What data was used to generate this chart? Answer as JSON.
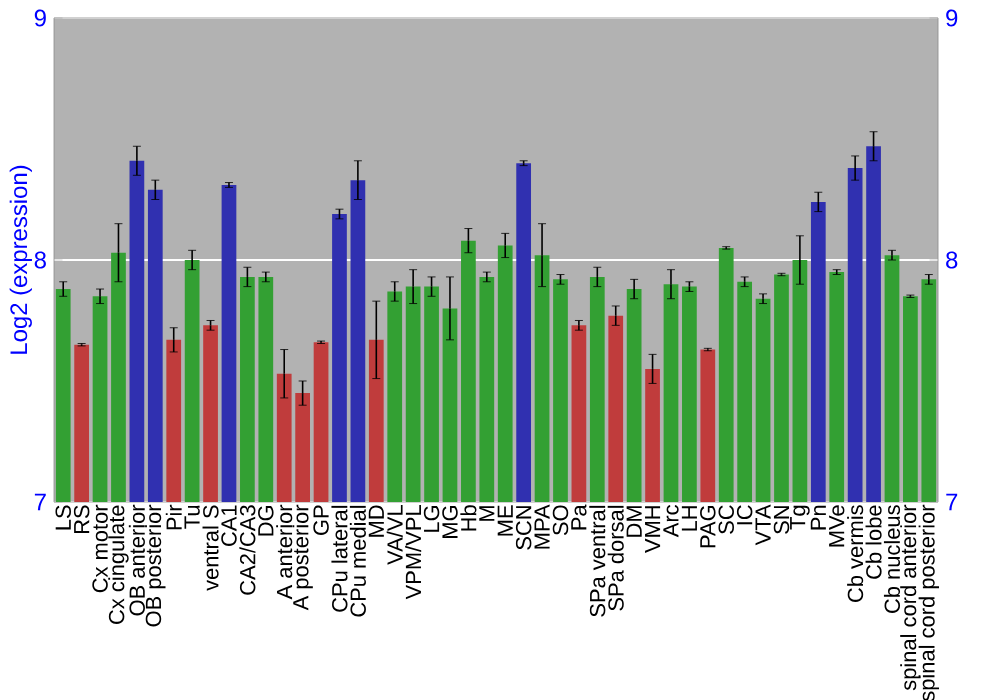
{
  "chart_data": {
    "type": "bar",
    "ylabel": "Log2 (expression)",
    "categories": [
      "LS",
      "RS",
      "Cx motor",
      "Cx cingulate",
      "OB anterior",
      "OB posterior",
      "Pir",
      "Tu",
      "ventral S",
      "CA1",
      "CA2/CA3",
      "DG",
      "A anterior",
      "A posterior",
      "GP",
      "CPu lateral",
      "CPu medial",
      "MD",
      "VA/VL",
      "VPM/VPL",
      "LG",
      "MG",
      "Hb",
      "M",
      "ME",
      "SCN",
      "MPA",
      "SO",
      "Pa",
      "SPa ventral",
      "SPa dorsal",
      "DM",
      "VMH",
      "Arc",
      "LH",
      "PAG",
      "SC",
      "IC",
      "VTA",
      "SN",
      "Tg",
      "Pn",
      "MVe",
      "Cb vermis",
      "Cb lobe",
      "Cb nucleus",
      "spinal cord anterior",
      "spinal cord posterior"
    ],
    "values": [
      7.88,
      7.65,
      7.85,
      8.03,
      8.41,
      8.29,
      7.67,
      8.0,
      7.73,
      8.31,
      7.93,
      7.93,
      7.53,
      7.45,
      7.66,
      8.19,
      8.33,
      7.67,
      7.87,
      7.89,
      7.89,
      7.8,
      8.08,
      7.93,
      8.06,
      8.4,
      8.02,
      7.92,
      7.73,
      7.93,
      7.77,
      7.88,
      7.55,
      7.9,
      7.89,
      7.63,
      8.05,
      7.91,
      7.84,
      7.94,
      8.0,
      8.24,
      7.95,
      8.38,
      8.47,
      8.02,
      7.85,
      7.92
    ],
    "errors": [
      0.03,
      0.005,
      0.03,
      0.12,
      0.06,
      0.04,
      0.05,
      0.04,
      0.02,
      0.01,
      0.04,
      0.02,
      0.1,
      0.05,
      0.005,
      0.02,
      0.08,
      0.16,
      0.04,
      0.07,
      0.04,
      0.13,
      0.05,
      0.02,
      0.05,
      0.01,
      0.13,
      0.02,
      0.02,
      0.04,
      0.04,
      0.04,
      0.06,
      0.06,
      0.02,
      0.005,
      0.005,
      0.02,
      0.02,
      0.005,
      0.1,
      0.04,
      0.01,
      0.05,
      0.06,
      0.02,
      0.005,
      0.02
    ],
    "colors": [
      "#33a033",
      "#c03c3c",
      "#33a033",
      "#33a033",
      "#3030b0",
      "#3030b0",
      "#c03c3c",
      "#33a033",
      "#c03c3c",
      "#3030b0",
      "#33a033",
      "#33a033",
      "#c03c3c",
      "#c03c3c",
      "#c03c3c",
      "#3030b0",
      "#3030b0",
      "#c03c3c",
      "#33a033",
      "#33a033",
      "#33a033",
      "#33a033",
      "#33a033",
      "#33a033",
      "#33a033",
      "#3030b0",
      "#33a033",
      "#33a033",
      "#c03c3c",
      "#33a033",
      "#c03c3c",
      "#33a033",
      "#c03c3c",
      "#33a033",
      "#33a033",
      "#c03c3c",
      "#33a033",
      "#33a033",
      "#33a033",
      "#33a033",
      "#33a033",
      "#3030b0",
      "#33a033",
      "#3030b0",
      "#3030b0",
      "#33a033",
      "#33a033",
      "#33a033"
    ],
    "ylim": [
      7,
      9
    ],
    "yticks": [
      7,
      8,
      9
    ],
    "y2lim": [
      7,
      9
    ],
    "y2ticks": [
      7,
      8,
      9
    ],
    "grid": "y"
  }
}
